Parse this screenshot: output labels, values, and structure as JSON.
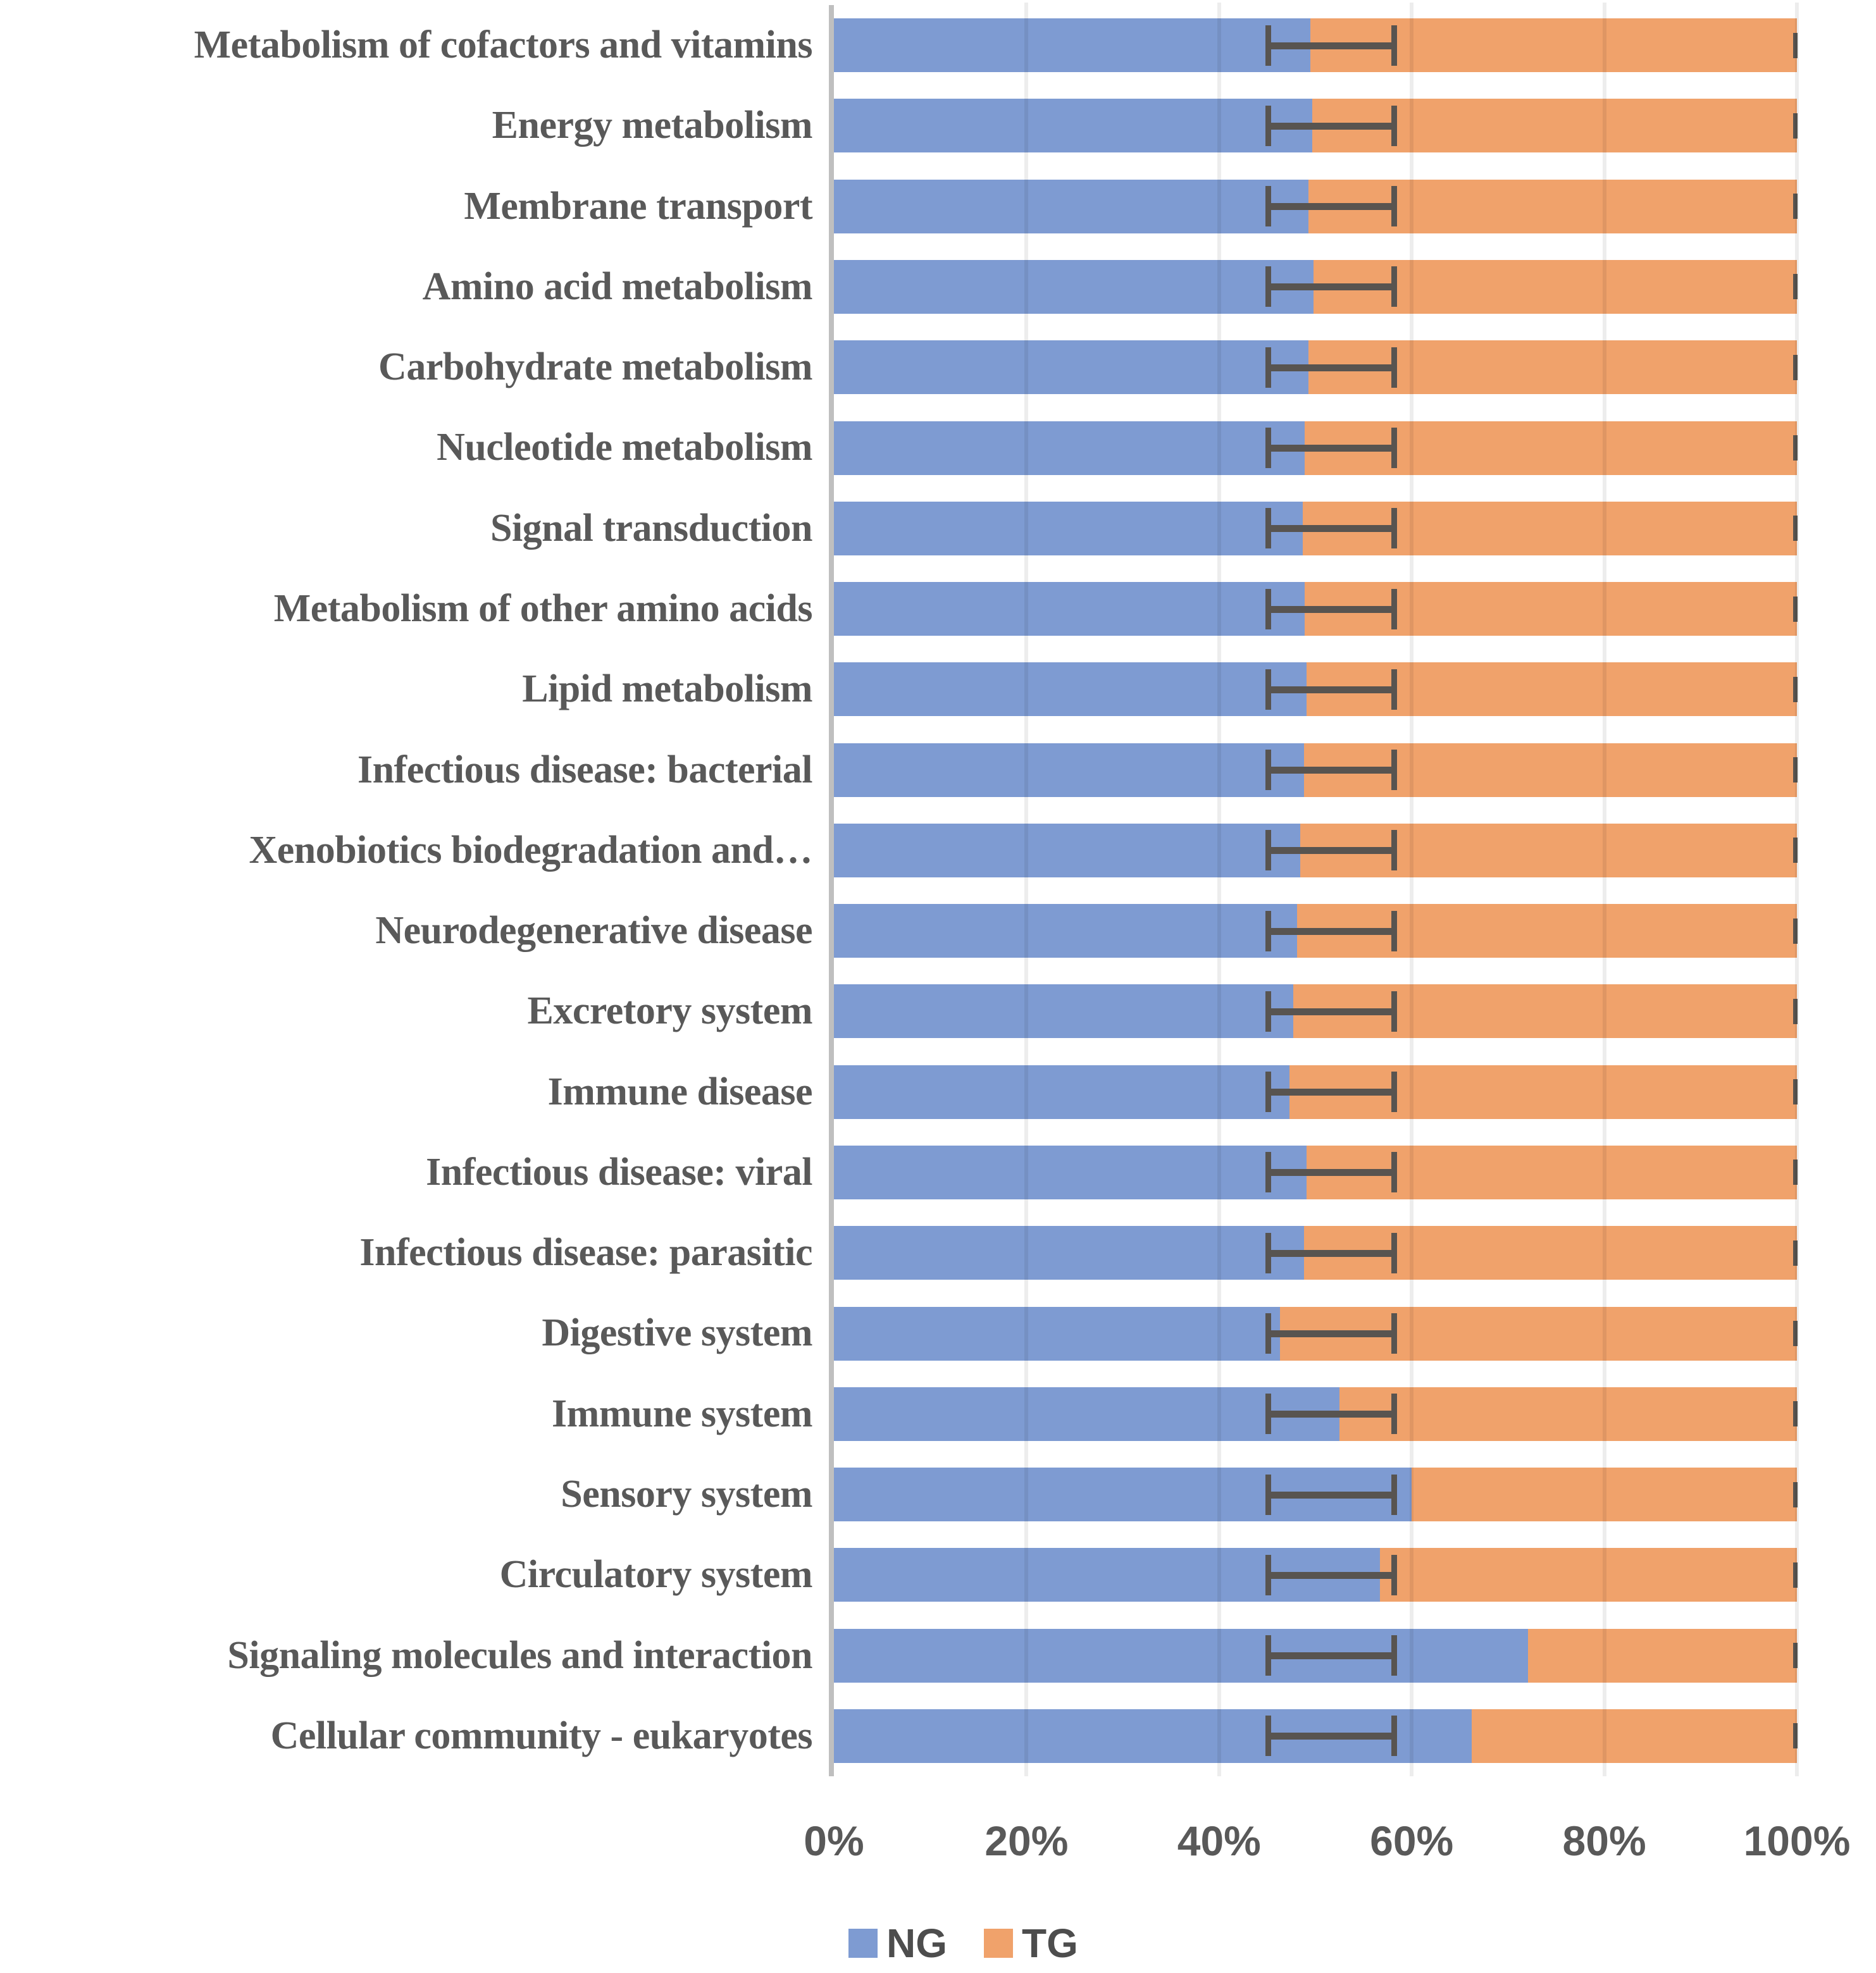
{
  "chart_data": {
    "type": "bar",
    "orientation": "horizontal-stacked",
    "title": "",
    "xlabel": "",
    "ylabel": "",
    "xlim": [
      0,
      100
    ],
    "grid": "vertical-major",
    "x_ticks": [
      {
        "label": "0%",
        "value": 0
      },
      {
        "label": "20%",
        "value": 20
      },
      {
        "label": "40%",
        "value": 40
      },
      {
        "label": "60%",
        "value": 60
      },
      {
        "label": "80%",
        "value": 80
      },
      {
        "label": "100%",
        "value": 100
      }
    ],
    "categories": [
      "Metabolism of cofactors and vitamins",
      "Energy metabolism",
      "Membrane transport",
      "Amino acid metabolism",
      "Carbohydrate metabolism",
      "Nucleotide metabolism",
      "Signal transduction",
      "Metabolism of other amino acids",
      "Lipid metabolism",
      "Infectious disease: bacterial",
      "Xenobiotics biodegradation and…",
      "Neurodegenerative disease",
      "Excretory system",
      "Immune disease",
      "Infectious disease: viral",
      "Infectious disease: parasitic",
      "Digestive system",
      "Immune system",
      "Sensory system",
      "Circulatory system",
      "Signaling molecules and interaction",
      "Cellular community - eukaryotes"
    ],
    "series": [
      {
        "name": "NG",
        "color": "#7e9bd2",
        "values": [
          49.5,
          49.7,
          49.3,
          49.8,
          49.3,
          48.9,
          48.7,
          48.9,
          49.1,
          48.8,
          48.4,
          48.1,
          47.7,
          47.3,
          49.1,
          48.8,
          46.3,
          52.5,
          60.0,
          56.7,
          72.1,
          66.2
        ]
      },
      {
        "name": "TG",
        "color": "#f0a26b",
        "values": [
          50.5,
          50.3,
          50.7,
          50.2,
          50.7,
          51.1,
          51.3,
          51.1,
          50.9,
          51.2,
          51.6,
          51.9,
          52.3,
          52.7,
          50.9,
          51.2,
          53.7,
          47.5,
          40.0,
          43.3,
          27.9,
          33.8
        ]
      }
    ],
    "error_bars": {
      "series": "NG",
      "low_pct": 45.1,
      "high_pct": 58.2,
      "color": "#585450",
      "stack_end_tick_pct": 100
    },
    "legend_position": "bottom",
    "legend": [
      {
        "label": "NG",
        "color": "#7e9bd2"
      },
      {
        "label": "TG",
        "color": "#f0a26b"
      }
    ],
    "colors": {
      "axis_line": "#bfbfbf",
      "tick_label": "#595959",
      "category_label": "#595959",
      "gridline_overlay": "rgba(0,0,0,0.07)"
    }
  }
}
